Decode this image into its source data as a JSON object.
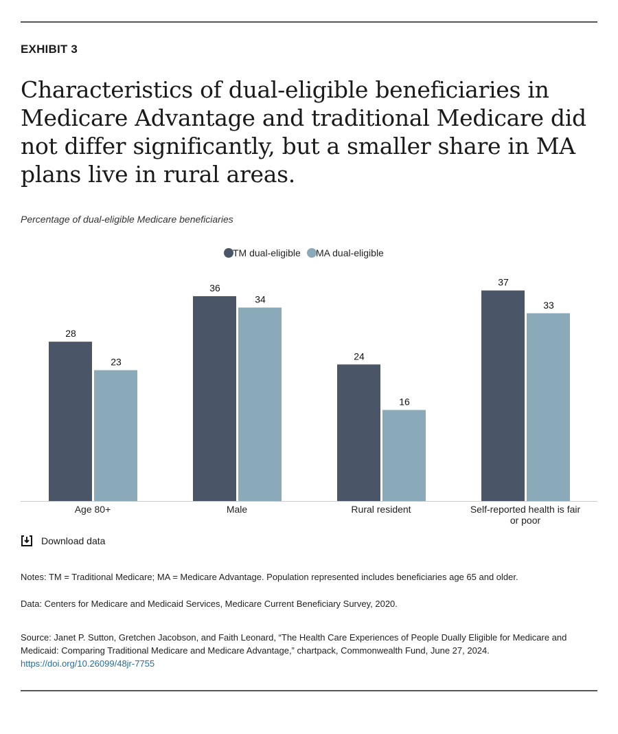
{
  "exhibit": "EXHIBIT 3",
  "title": "Characteristics of dual-eligible beneficiaries in Medicare Advantage and traditional Medicare did not differ significantly, but a smaller share in MA plans live in rural areas.",
  "subtitle": "Percentage of dual-eligible Medicare beneficiaries",
  "download_label": "Download data",
  "download_icon": "download-icon",
  "notes": "Notes: TM = Traditional Medicare; MA = Medicare Advantage. Population represented includes beneficiaries age 65 and older.",
  "data_source": "Data: Centers for Medicare and Medicaid Services, Medicare Current Beneficiary Survey, 2020.",
  "source_text": "Source: Janet P. Sutton, Gretchen Jacobson, and Faith Leonard, “The Health Care Experiences of People Dually Eligible for Medicare and Medicaid: Comparing Traditional Medicare and Medicare Advantage,” chartpack, Commonwealth Fund, June 27, 2024.",
  "source_link": "https://doi.org/10.26099/48jr-7755",
  "chart_data": {
    "type": "bar",
    "categories": [
      "Age 80+",
      "Male",
      "Rural resident",
      "Self-reported health is fair or poor"
    ],
    "series": [
      {
        "name": "TM dual-eligible",
        "color": "#4a5668",
        "values": [
          28,
          36,
          24,
          37
        ]
      },
      {
        "name": "MA dual-eligible",
        "color": "#8aaaba",
        "values": [
          23,
          34,
          16,
          33
        ]
      }
    ],
    "ylim": [
      0,
      37
    ],
    "grid": false,
    "legend": "top-center",
    "data_labels": true
  }
}
